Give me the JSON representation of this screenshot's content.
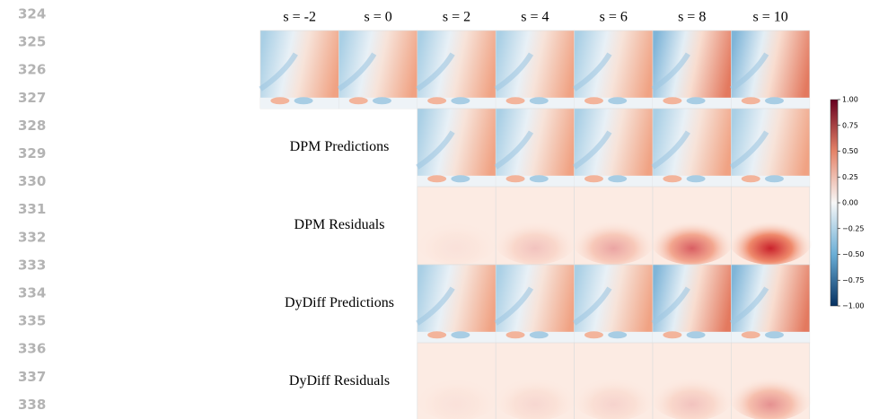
{
  "line_numbers": [
    324,
    325,
    326,
    327,
    328,
    329,
    330,
    331,
    332,
    333,
    334,
    335,
    336,
    337,
    338
  ],
  "columns": [
    "s = -2",
    "s = 0",
    "s = 2",
    "s = 4",
    "s = 6",
    "s = 8",
    "s = 10"
  ],
  "rows": [
    "DPM Predictions",
    "DPM Residuals",
    "DyDiff Predictions",
    "DyDiff Residuals"
  ],
  "colorbar": {
    "lim": [
      -1,
      1
    ],
    "ticks": [
      {
        "value": 1,
        "label": "1.00"
      },
      {
        "value": 0.75,
        "label": "0.75"
      },
      {
        "value": 0.5,
        "label": "0.50"
      },
      {
        "value": 0.25,
        "label": "0.25"
      },
      {
        "value": 0,
        "label": "0.00"
      },
      {
        "value": -0.25,
        "label": "−0.25"
      },
      {
        "value": -0.5,
        "label": "−0.50"
      },
      {
        "value": -0.75,
        "label": "−0.75"
      },
      {
        "value": -1,
        "label": "−1.00"
      }
    ]
  }
}
